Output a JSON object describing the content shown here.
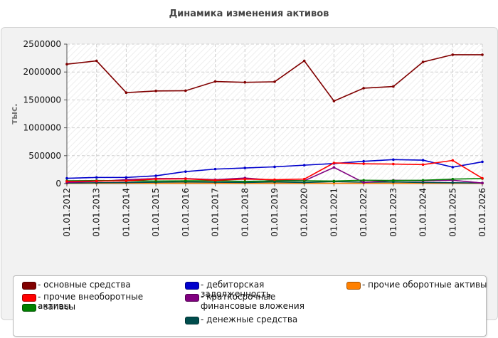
{
  "chart_data": {
    "type": "line",
    "title": "Динамика изменения активов",
    "ylabel": "тыс.",
    "xlabel": "",
    "ylim": [
      0,
      2500000
    ],
    "yticks": [
      0,
      500000,
      1000000,
      1500000,
      2000000,
      2500000
    ],
    "grid": true,
    "legend_position": "bottom",
    "categories": [
      "01.01.2012",
      "01.01.2013",
      "01.01.2014",
      "01.01.2015",
      "01.01.2016",
      "01.01.2017",
      "01.01.2018",
      "01.01.2019",
      "01.01.2020",
      "01.01.2021",
      "01.01.2022",
      "01.01.2023",
      "01.01.2024",
      "01.01.2025",
      "01.01.2026"
    ],
    "series": [
      {
        "name": "основные средства",
        "color": "#800000",
        "values": [
          2140000,
          2200000,
          1630000,
          1660000,
          1665000,
          1830000,
          1815000,
          1825000,
          2200000,
          1480000,
          1710000,
          1740000,
          2180000,
          2310000,
          2310000
        ]
      },
      {
        "name": "прочие внеоборотные активы",
        "color": "#ff0000",
        "values": [
          40000,
          45000,
          50000,
          80000,
          85000,
          60000,
          80000,
          70000,
          80000,
          370000,
          355000,
          350000,
          340000,
          415000,
          95000
        ]
      },
      {
        "name": "запасы",
        "color": "#008000",
        "values": [
          50000,
          55000,
          50000,
          45000,
          50000,
          50000,
          40000,
          50000,
          50000,
          45000,
          60000,
          55000,
          60000,
          80000,
          90000
        ]
      },
      {
        "name": "дебиторская задолженность",
        "color": "#0000cc",
        "values": [
          95000,
          110000,
          110000,
          140000,
          215000,
          260000,
          280000,
          300000,
          330000,
          360000,
          400000,
          430000,
          420000,
          295000,
          390000
        ]
      },
      {
        "name": "краткосрочные финансовые вложения",
        "color": "#800080",
        "values": [
          20000,
          40000,
          70000,
          90000,
          90000,
          70000,
          100000,
          60000,
          50000,
          290000,
          20000,
          60000,
          50000,
          60000,
          10000
        ]
      },
      {
        "name": "денежные средства",
        "color": "#004d4d",
        "values": [
          10000,
          15000,
          20000,
          25000,
          30000,
          25000,
          20000,
          30000,
          20000,
          35000,
          25000,
          30000,
          20000,
          15000,
          10000
        ]
      },
      {
        "name": "прочие оборотные активы",
        "color": "#ff8000",
        "values": [
          5000,
          5000,
          10000,
          5000,
          8000,
          6000,
          5000,
          8000,
          5000,
          5000,
          6000,
          5000,
          5000,
          5000,
          5000
        ]
      }
    ],
    "ytick_labels": [
      "0",
      "500000",
      "1000000",
      "1500000",
      "2000000",
      "2500000"
    ]
  }
}
